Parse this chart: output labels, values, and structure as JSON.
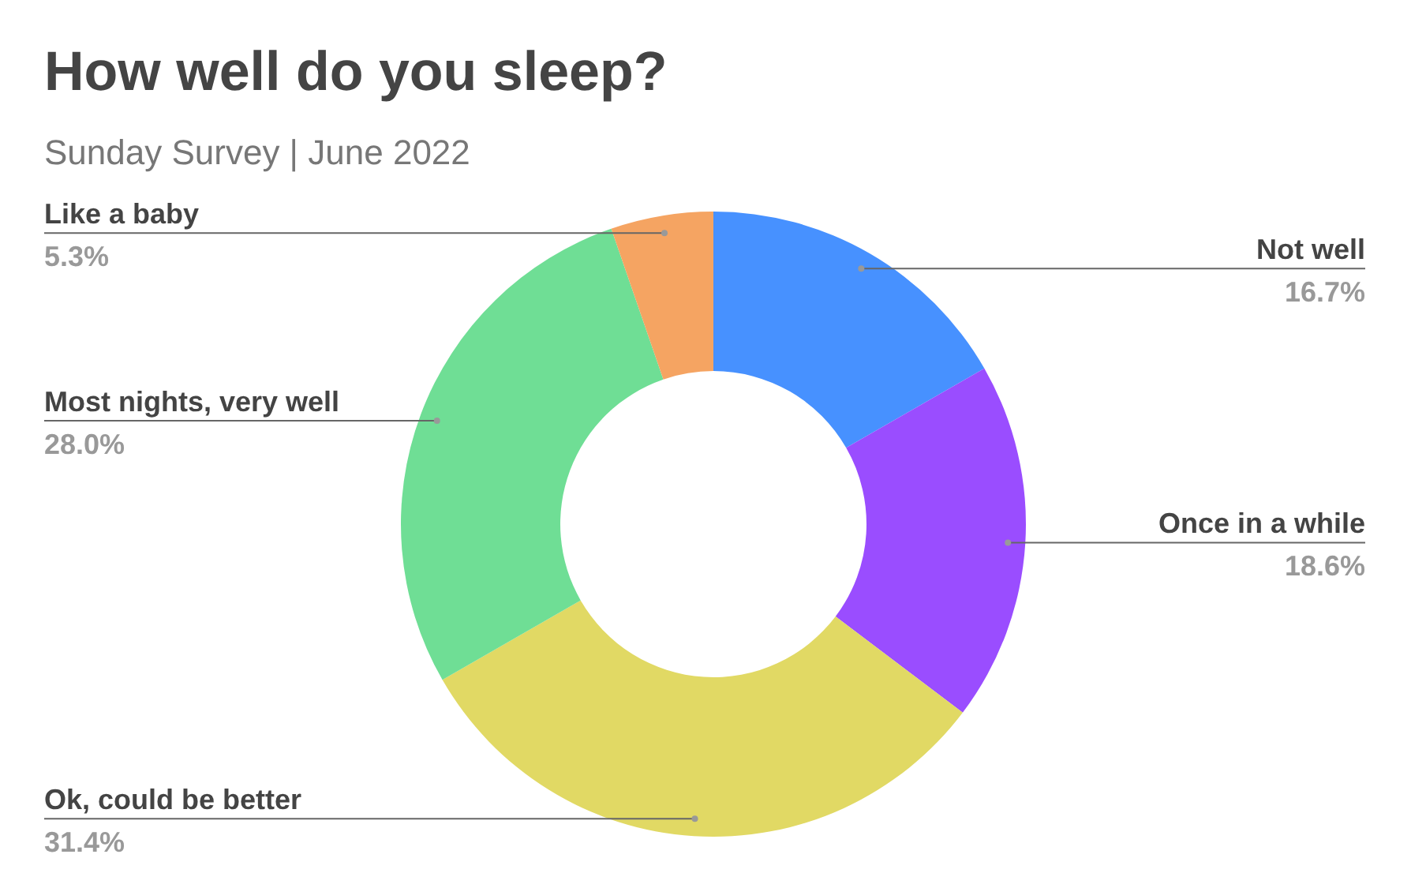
{
  "chart_data": {
    "type": "donut",
    "title": "How well do you sleep?",
    "subtitle": "Sunday Survey | June 2022",
    "categories": [
      "Not well",
      "Once in a while",
      "Ok, could be better",
      "Most nights, very well",
      "Like a baby"
    ],
    "values": [
      16.7,
      18.6,
      31.4,
      28.0,
      5.3
    ],
    "colors": [
      "#4791ff",
      "#9a4dff",
      "#e1d964",
      "#6fde95",
      "#f5a462"
    ],
    "value_labels": [
      "16.7%",
      "18.6%",
      "31.4%",
      "28.0%",
      "5.3%"
    ],
    "legend": false
  }
}
